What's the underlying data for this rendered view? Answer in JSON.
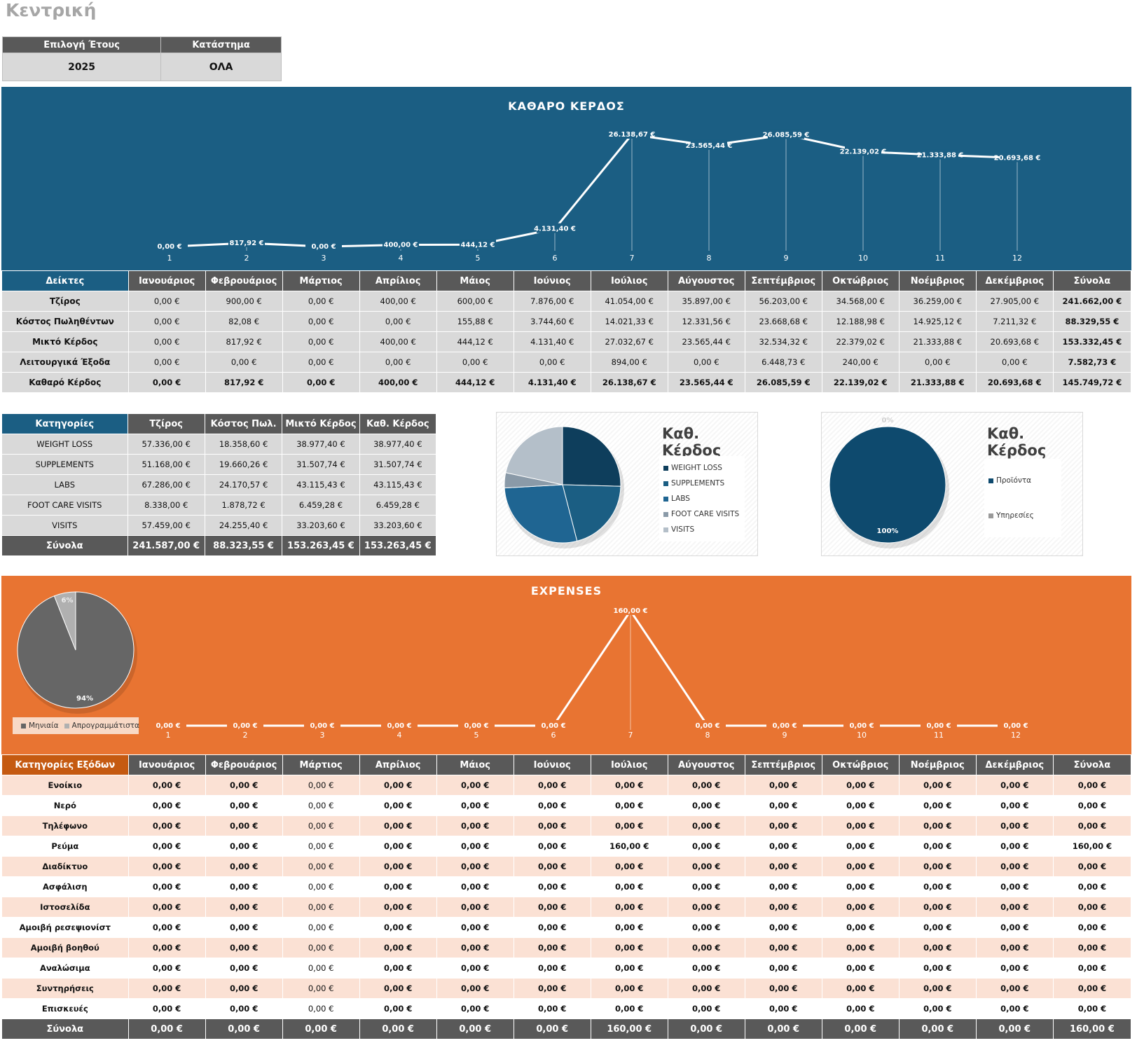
{
  "page": {
    "title": "Κεντρική"
  },
  "filters": {
    "year_label": "Επιλογή Έτους",
    "year_value": "2025",
    "store_label": "Κατάστημα",
    "store_value": "ΟΛΑ"
  },
  "profit_chart": {
    "title": "ΚΑΘΑΡΟ ΚΕΡΔΟΣ",
    "chart_data": {
      "type": "line",
      "x": [
        1,
        2,
        3,
        4,
        5,
        6,
        7,
        8,
        9,
        10,
        11,
        12
      ],
      "values": [
        0,
        817.92,
        0,
        400,
        444.12,
        4131.4,
        26138.67,
        23565.44,
        26085.59,
        22139.02,
        21333.88,
        20693.68
      ],
      "labels": [
        "0,00 €",
        "817,92 €",
        "0,00 €",
        "400,00 €",
        "444,12 €",
        "4.131,40 €",
        "26.138,67 €",
        "23.565,44 €",
        "26.085,59 €",
        "22.139,02 €",
        "21.333,88 €",
        "20.693,68 €"
      ],
      "xlabels": [
        "1",
        "2",
        "3",
        "4",
        "5",
        "6",
        "7",
        "8",
        "9",
        "10",
        "11",
        "12"
      ]
    }
  },
  "indicators": {
    "headers": [
      "Δείκτες",
      "Ιανουάριος",
      "Φεβρουάριος",
      "Μάρτιος",
      "Απρίλιος",
      "Μάιος",
      "Ιούνιος",
      "Ιούλιος",
      "Αύγουστος",
      "Σεπτέμβριος",
      "Οκτώβριος",
      "Νοέμβριος",
      "Δεκέμβριος",
      "Σύνολα"
    ],
    "rows": [
      {
        "label": "Τζίρος",
        "bold": false,
        "cells": [
          "0,00 €",
          "900,00 €",
          "0,00 €",
          "400,00 €",
          "600,00 €",
          "7.876,00 €",
          "41.054,00 €",
          "35.897,00 €",
          "56.203,00 €",
          "34.568,00 €",
          "36.259,00 €",
          "27.905,00 €",
          "241.662,00 €"
        ]
      },
      {
        "label": "Κόστος Πωληθέντων",
        "bold": false,
        "cells": [
          "0,00 €",
          "82,08 €",
          "0,00 €",
          "0,00 €",
          "155,88 €",
          "3.744,60 €",
          "14.021,33 €",
          "12.331,56 €",
          "23.668,68 €",
          "12.188,98 €",
          "14.925,12 €",
          "7.211,32 €",
          "88.329,55 €"
        ]
      },
      {
        "label": "Μικτό Κέρδος",
        "bold": false,
        "cells": [
          "0,00 €",
          "817,92 €",
          "0,00 €",
          "400,00 €",
          "444,12 €",
          "4.131,40 €",
          "27.032,67 €",
          "23.565,44 €",
          "32.534,32 €",
          "22.379,02 €",
          "21.333,88 €",
          "20.693,68 €",
          "153.332,45 €"
        ]
      },
      {
        "label": "Λειτουργικά Έξοδα",
        "bold": false,
        "cells": [
          "0,00 €",
          "0,00 €",
          "0,00 €",
          "0,00 €",
          "0,00 €",
          "0,00 €",
          "894,00 €",
          "0,00 €",
          "6.448,73 €",
          "240,00 €",
          "0,00 €",
          "0,00 €",
          "7.582,73 €"
        ]
      },
      {
        "label": "Καθαρό Κέρδος",
        "bold": true,
        "cells": [
          "0,00 €",
          "817,92 €",
          "0,00 €",
          "400,00 €",
          "444,12 €",
          "4.131,40 €",
          "26.138,67 €",
          "23.565,44 €",
          "26.085,59 €",
          "22.139,02 €",
          "21.333,88 €",
          "20.693,68 €",
          "145.749,72 €"
        ]
      }
    ]
  },
  "categories": {
    "headers": [
      "Κατηγορίες",
      "Τζίρος",
      "Κόστος Πωλ.",
      "Μικτό Κέρδος",
      "Καθ. Κέρδος"
    ],
    "rows": [
      [
        "WEIGHT LOSS",
        "57.336,00 €",
        "18.358,60 €",
        "38.977,40 €",
        "38.977,40 €"
      ],
      [
        "SUPPLEMENTS",
        "51.168,00 €",
        "19.660,26 €",
        "31.507,74 €",
        "31.507,74 €"
      ],
      [
        "LABS",
        "67.286,00 €",
        "24.170,57 €",
        "43.115,43 €",
        "43.115,43 €"
      ],
      [
        "FOOT CARE VISITS",
        "8.338,00 €",
        "1.878,72 €",
        "6.459,28 €",
        "6.459,28 €"
      ],
      [
        "VISITS",
        "57.459,00 €",
        "24.255,40 €",
        "33.203,60 €",
        "33.203,60 €"
      ]
    ],
    "totals": [
      "Σύνολα",
      "241.587,00 €",
      "88.323,55 €",
      "153.263,45 €",
      "153.263,45 €"
    ]
  },
  "pie_categories": {
    "title": "Καθ. Κέρδος",
    "chart_data": {
      "type": "pie",
      "categories": [
        "WEIGHT LOSS",
        "SUPPLEMENTS",
        "LABS",
        "FOOT CARE VISITS",
        "VISITS"
      ],
      "values": [
        38977.4,
        31507.74,
        43115.43,
        6459.28,
        33203.6
      ],
      "colors": [
        "#0e3e5c",
        "#1b5e83",
        "#1f6592",
        "#8a9aa8",
        "#b4bfc9"
      ]
    }
  },
  "pie_type": {
    "title": "Καθ. Κέρδος",
    "chart_data": {
      "type": "pie",
      "categories": [
        "Προϊόντα",
        "Υπηρεσίες"
      ],
      "values": [
        100,
        0
      ],
      "labels": [
        "100%",
        "0%"
      ],
      "colors": [
        "#0e4a6e",
        "#9a9a9a"
      ]
    }
  },
  "expenses_chart": {
    "title": "EXPENSES",
    "chart_data": {
      "type": "line",
      "x": [
        1,
        2,
        3,
        4,
        5,
        6,
        7,
        8,
        9,
        10,
        11,
        12
      ],
      "values": [
        0,
        0,
        0,
        0,
        0,
        0,
        160,
        0,
        0,
        0,
        0,
        0
      ],
      "labels": [
        "0,00 €",
        "0,00 €",
        "0,00 €",
        "0,00 €",
        "0,00 €",
        "0,00 €",
        "160,00 €",
        "0,00 €",
        "0,00 €",
        "0,00 €",
        "0,00 €",
        "0,00 €"
      ],
      "xlabels": [
        "1",
        "2",
        "3",
        "4",
        "5",
        "6",
        "7",
        "8",
        "9",
        "10",
        "11",
        "12"
      ]
    }
  },
  "expenses_pie": {
    "chart_data": {
      "type": "pie",
      "categories": [
        "Μηνιαία",
        "Απρογραμμάτιστα"
      ],
      "values": [
        94,
        6
      ],
      "labels": [
        "94%",
        "6%"
      ],
      "colors": [
        "#666666",
        "#b0b0b0"
      ]
    }
  },
  "expenses": {
    "headers": [
      "Κατηγορίες Εξόδων",
      "Ιανουάριος",
      "Φεβρουάριος",
      "Μάρτιος",
      "Απρίλιος",
      "Μάιος",
      "Ιούνιος",
      "Ιούλιος",
      "Αύγουστος",
      "Σεπτέμβριος",
      "Οκτώβριος",
      "Νοέμβριος",
      "Δεκέμβριος",
      "Σύνολα"
    ],
    "rows": [
      {
        "label": "Ενοίκιο",
        "cells": [
          "0,00 €",
          "0,00 €",
          "0,00 €",
          "0,00 €",
          "0,00 €",
          "0,00 €",
          "0,00 €",
          "0,00 €",
          "0,00 €",
          "0,00 €",
          "0,00 €",
          "0,00 €",
          "0,00 €"
        ]
      },
      {
        "label": "Νερό",
        "cells": [
          "0,00 €",
          "0,00 €",
          "0,00 €",
          "0,00 €",
          "0,00 €",
          "0,00 €",
          "0,00 €",
          "0,00 €",
          "0,00 €",
          "0,00 €",
          "0,00 €",
          "0,00 €",
          "0,00 €"
        ]
      },
      {
        "label": "Τηλέφωνο",
        "cells": [
          "0,00 €",
          "0,00 €",
          "0,00 €",
          "0,00 €",
          "0,00 €",
          "0,00 €",
          "0,00 €",
          "0,00 €",
          "0,00 €",
          "0,00 €",
          "0,00 €",
          "0,00 €",
          "0,00 €"
        ]
      },
      {
        "label": "Ρεύμα",
        "cells": [
          "0,00 €",
          "0,00 €",
          "0,00 €",
          "0,00 €",
          "0,00 €",
          "0,00 €",
          "160,00 €",
          "0,00 €",
          "0,00 €",
          "0,00 €",
          "0,00 €",
          "0,00 €",
          "160,00 €"
        ]
      },
      {
        "label": "Διαδίκτυο",
        "cells": [
          "0,00 €",
          "0,00 €",
          "0,00 €",
          "0,00 €",
          "0,00 €",
          "0,00 €",
          "0,00 €",
          "0,00 €",
          "0,00 €",
          "0,00 €",
          "0,00 €",
          "0,00 €",
          "0,00 €"
        ]
      },
      {
        "label": "Ασφάλιση",
        "cells": [
          "0,00 €",
          "0,00 €",
          "0,00 €",
          "0,00 €",
          "0,00 €",
          "0,00 €",
          "0,00 €",
          "0,00 €",
          "0,00 €",
          "0,00 €",
          "0,00 €",
          "0,00 €",
          "0,00 €"
        ]
      },
      {
        "label": "Ιστοσελίδα",
        "cells": [
          "0,00 €",
          "0,00 €",
          "0,00 €",
          "0,00 €",
          "0,00 €",
          "0,00 €",
          "0,00 €",
          "0,00 €",
          "0,00 €",
          "0,00 €",
          "0,00 €",
          "0,00 €",
          "0,00 €"
        ]
      },
      {
        "label": "Αμοιβή ρεσεψιονίστ",
        "cells": [
          "0,00 €",
          "0,00 €",
          "0,00 €",
          "0,00 €",
          "0,00 €",
          "0,00 €",
          "0,00 €",
          "0,00 €",
          "0,00 €",
          "0,00 €",
          "0,00 €",
          "0,00 €",
          "0,00 €"
        ]
      },
      {
        "label": "Αμοιβή βοηθού",
        "cells": [
          "0,00 €",
          "0,00 €",
          "0,00 €",
          "0,00 €",
          "0,00 €",
          "0,00 €",
          "0,00 €",
          "0,00 €",
          "0,00 €",
          "0,00 €",
          "0,00 €",
          "0,00 €",
          "0,00 €"
        ]
      },
      {
        "label": "Αναλώσιμα",
        "cells": [
          "0,00 €",
          "0,00 €",
          "0,00 €",
          "0,00 €",
          "0,00 €",
          "0,00 €",
          "0,00 €",
          "0,00 €",
          "0,00 €",
          "0,00 €",
          "0,00 €",
          "0,00 €",
          "0,00 €"
        ]
      },
      {
        "label": "Συντηρήσεις",
        "cells": [
          "0,00 €",
          "0,00 €",
          "0,00 €",
          "0,00 €",
          "0,00 €",
          "0,00 €",
          "0,00 €",
          "0,00 €",
          "0,00 €",
          "0,00 €",
          "0,00 €",
          "0,00 €",
          "0,00 €"
        ]
      },
      {
        "label": "Επισκευές",
        "cells": [
          "0,00 €",
          "0,00 €",
          "0,00 €",
          "0,00 €",
          "0,00 €",
          "0,00 €",
          "0,00 €",
          "0,00 €",
          "0,00 €",
          "0,00 €",
          "0,00 €",
          "0,00 €",
          "0,00 €"
        ]
      }
    ],
    "totals": [
      "Σύνολα",
      "0,00 €",
      "0,00 €",
      "0,00 €",
      "0,00 €",
      "0,00 €",
      "0,00 €",
      "160,00 €",
      "0,00 €",
      "0,00 €",
      "0,00 €",
      "0,00 €",
      "0,00 €",
      "160,00 €"
    ]
  }
}
